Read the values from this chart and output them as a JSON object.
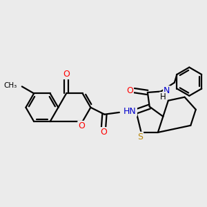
{
  "background_color": "#ebebeb",
  "bond_color": "#000000",
  "bond_width": 1.6,
  "atoms": {
    "O_red": "#ff0000",
    "N_blue": "#0000cd",
    "S_yellow": "#b8860b",
    "C_black": "#000000"
  },
  "xlim": [
    0.0,
    1.0
  ],
  "ylim": [
    0.15,
    0.92
  ]
}
